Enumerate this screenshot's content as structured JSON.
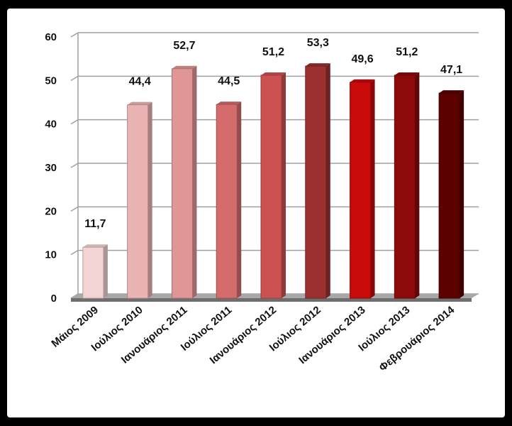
{
  "chart_data": {
    "type": "bar",
    "categories": [
      "Μάιος 2009",
      "Ιούλιος 2010",
      "Ιανουάριος 2011",
      "Ιούλιος 2011",
      "Ιανουάριος 2012",
      "Ιούλιος 2012",
      "Ιανουάριος 2013",
      "Ιούλιος 2013",
      "Φεβρουάριος 2014"
    ],
    "values": [
      11.7,
      44.4,
      52.7,
      44.5,
      51.2,
      53.3,
      49.6,
      51.2,
      47.1
    ],
    "value_labels": [
      "11,7",
      "44,4",
      "52,7",
      "44,5",
      "51,2",
      "53,3",
      "49,6",
      "51,2",
      "47,1"
    ],
    "ylim": [
      0,
      60
    ],
    "yticks": [
      "0",
      "10",
      "20",
      "30",
      "40",
      "50",
      "60"
    ],
    "title": "",
    "xlabel": "",
    "ylabel": "",
    "grid": true,
    "colors": [
      "#f3d4d4",
      "#ebb4b4",
      "#e19696",
      "#d46c6c",
      "#cc5252",
      "#9a3030",
      "#c80a0a",
      "#8c0a0a",
      "#5c0000"
    ]
  }
}
